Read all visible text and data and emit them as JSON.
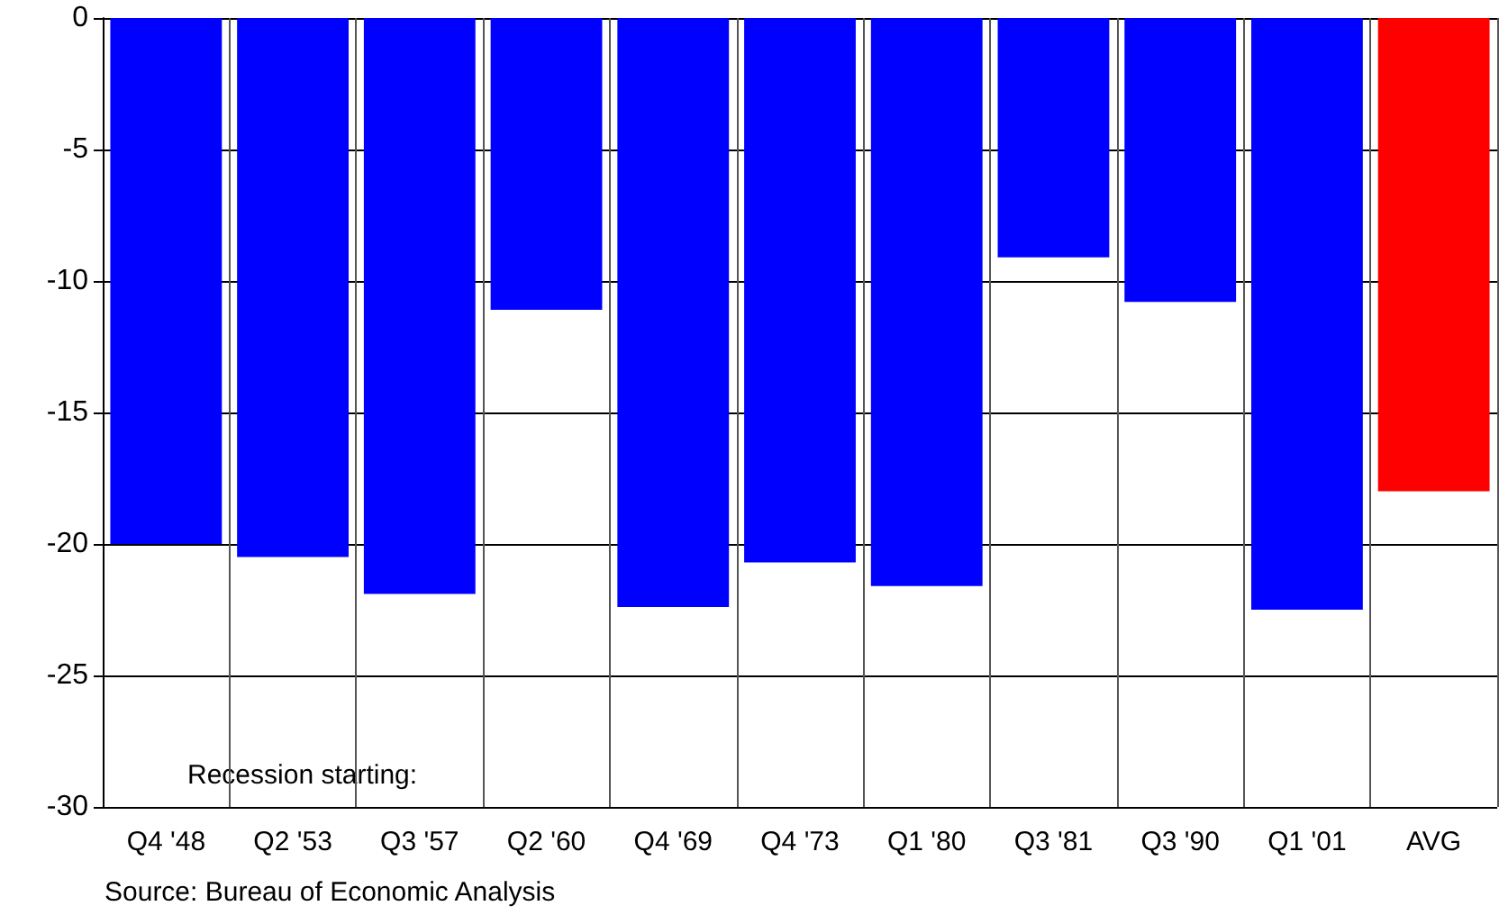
{
  "chart_data": {
    "type": "bar",
    "categories": [
      "Q4 '48",
      "Q2 '53",
      "Q3 '57",
      "Q2 '60",
      "Q4 '69",
      "Q4 '73",
      "Q1 '80",
      "Q3 '81",
      "Q3 '90",
      "Q1 '01",
      "AVG"
    ],
    "values": [
      -20.0,
      -20.5,
      -21.9,
      -11.1,
      -22.4,
      -20.7,
      -21.6,
      -9.1,
      -10.8,
      -22.5,
      -18.0
    ],
    "colors": [
      "#0000ff",
      "#0000ff",
      "#0000ff",
      "#0000ff",
      "#0000ff",
      "#0000ff",
      "#0000ff",
      "#0000ff",
      "#0000ff",
      "#0000ff",
      "#ff0000"
    ],
    "ylim": [
      -30,
      0
    ],
    "yticks": [
      -30,
      -25,
      -20,
      -15,
      -10,
      -5,
      0
    ],
    "grid": true,
    "annotations": [
      "Recession starting:",
      "Source: Bureau of Economic Analysis"
    ]
  }
}
